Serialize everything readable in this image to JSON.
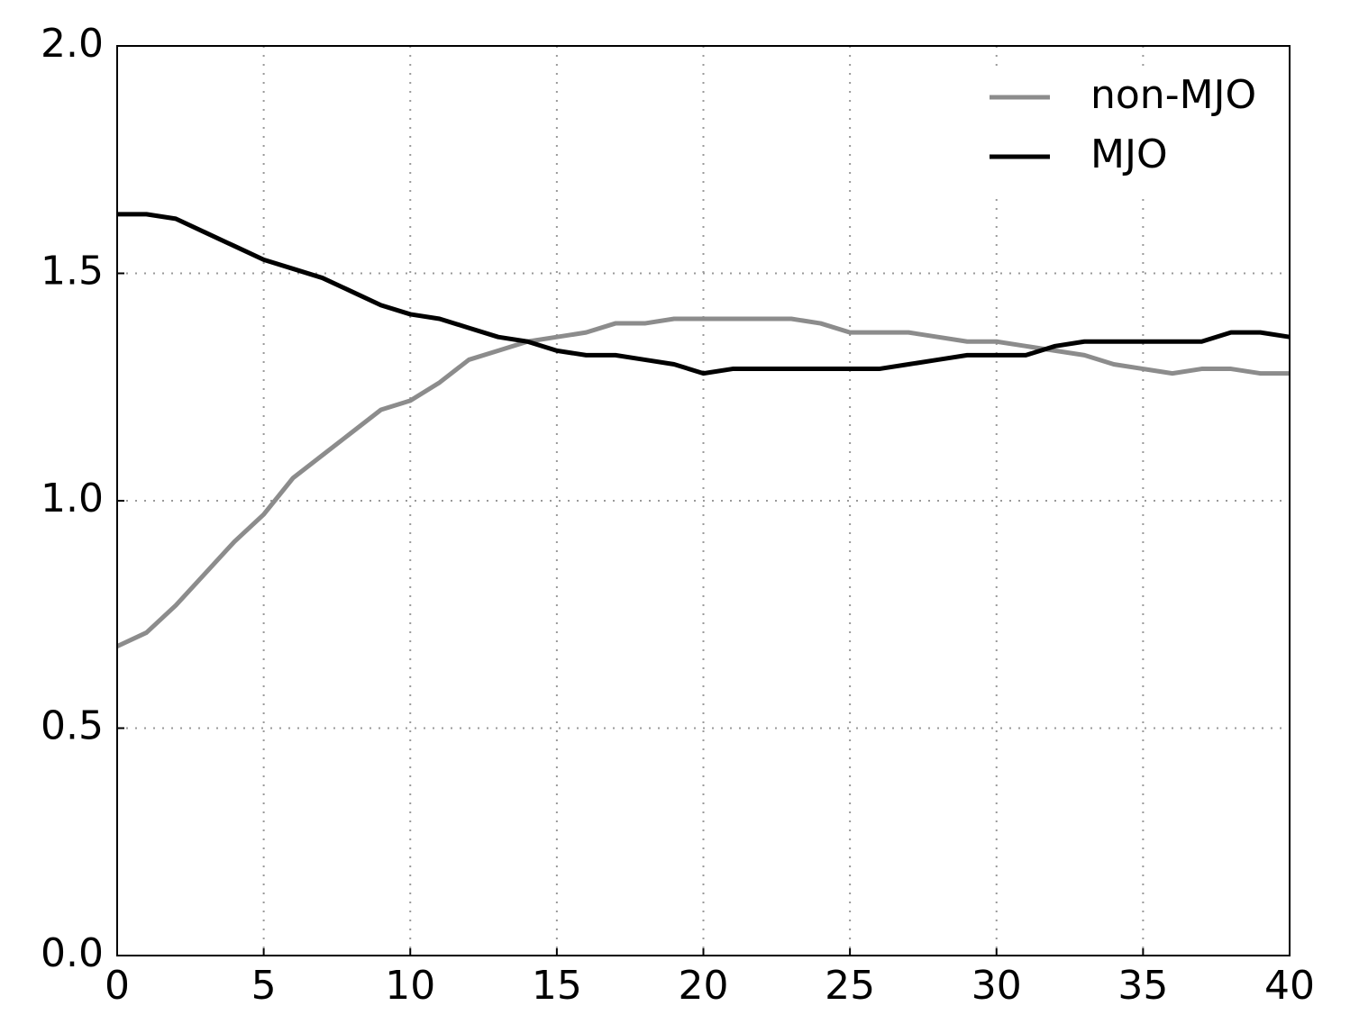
{
  "chart_data": {
    "type": "line",
    "x": [
      0,
      1,
      2,
      3,
      4,
      5,
      6,
      7,
      8,
      9,
      10,
      11,
      12,
      13,
      14,
      15,
      16,
      17,
      18,
      19,
      20,
      21,
      22,
      23,
      24,
      25,
      26,
      27,
      28,
      29,
      30,
      31,
      32,
      33,
      34,
      35,
      36,
      37,
      38,
      39,
      40
    ],
    "series": [
      {
        "name": "non-MJO",
        "color": "#8c8c8c",
        "values": [
          0.68,
          0.71,
          0.77,
          0.84,
          0.91,
          0.97,
          1.05,
          1.1,
          1.15,
          1.2,
          1.22,
          1.26,
          1.31,
          1.33,
          1.35,
          1.36,
          1.37,
          1.39,
          1.39,
          1.4,
          1.4,
          1.4,
          1.4,
          1.4,
          1.39,
          1.37,
          1.37,
          1.37,
          1.36,
          1.35,
          1.35,
          1.34,
          1.33,
          1.32,
          1.3,
          1.29,
          1.28,
          1.29,
          1.29,
          1.28,
          1.28
        ]
      },
      {
        "name": "MJO",
        "color": "#000000",
        "values": [
          1.63,
          1.63,
          1.62,
          1.59,
          1.56,
          1.53,
          1.51,
          1.49,
          1.46,
          1.43,
          1.41,
          1.4,
          1.38,
          1.36,
          1.35,
          1.33,
          1.32,
          1.32,
          1.31,
          1.3,
          1.28,
          1.29,
          1.29,
          1.29,
          1.29,
          1.29,
          1.29,
          1.3,
          1.31,
          1.32,
          1.32,
          1.32,
          1.34,
          1.35,
          1.35,
          1.35,
          1.35,
          1.35,
          1.37,
          1.37,
          1.36
        ]
      }
    ],
    "xlim": [
      0,
      40
    ],
    "xticks": [
      0,
      5,
      10,
      15,
      20,
      25,
      30,
      35,
      40
    ],
    "ylim": [
      0,
      2.0
    ],
    "yticks": [
      {
        "value": 0,
        "label": "0.0"
      },
      {
        "value": 0.5,
        "label": "0.5"
      },
      {
        "value": 1.0,
        "label": "1.0"
      },
      {
        "value": 1.5,
        "label": "1.5"
      },
      {
        "value": 2.0,
        "label": "2.0"
      }
    ],
    "grid": true,
    "legend": "upper right"
  }
}
